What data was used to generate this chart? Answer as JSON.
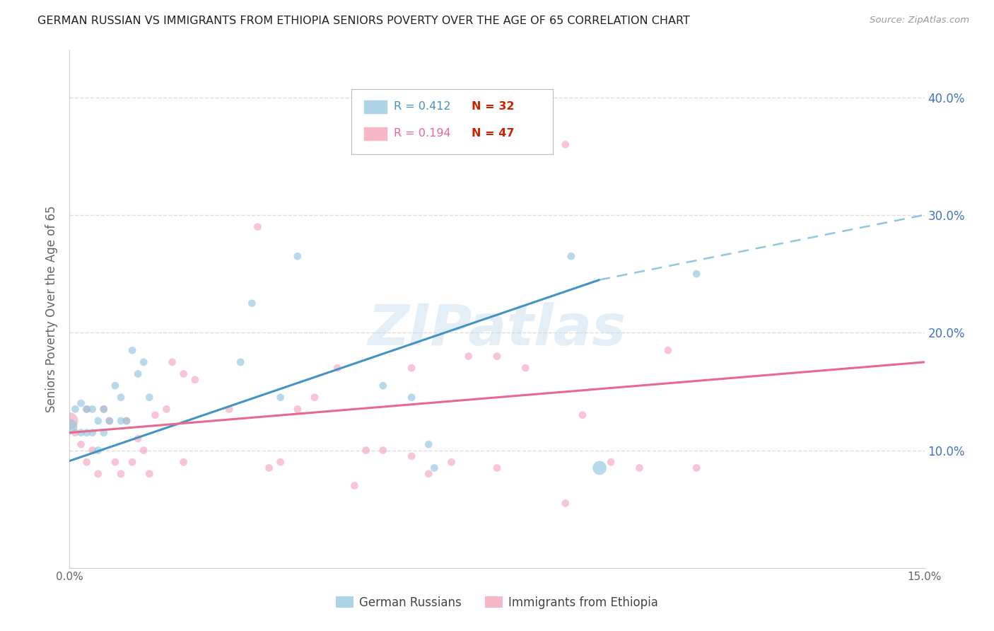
{
  "title": "GERMAN RUSSIAN VS IMMIGRANTS FROM ETHIOPIA SENIORS POVERTY OVER THE AGE OF 65 CORRELATION CHART",
  "source": "Source: ZipAtlas.com",
  "ylabel": "Seniors Poverty Over the Age of 65",
  "xlim": [
    0.0,
    0.15
  ],
  "ylim": [
    0.0,
    0.44
  ],
  "ytick_labels_right": [
    "10.0%",
    "20.0%",
    "30.0%",
    "40.0%"
  ],
  "ytick_values_right": [
    0.1,
    0.2,
    0.3,
    0.4
  ],
  "watermark": "ZIPatlas",
  "blue_color": "#92c5de",
  "pink_color": "#f4a0b5",
  "blue_line_color": "#4393c3",
  "pink_line_color": "#e8698d",
  "blue_dash_color": "#92c5de",
  "scatter_blue": {
    "x": [
      0.0,
      0.001,
      0.002,
      0.002,
      0.003,
      0.003,
      0.004,
      0.004,
      0.005,
      0.005,
      0.006,
      0.006,
      0.007,
      0.008,
      0.009,
      0.009,
      0.01,
      0.011,
      0.012,
      0.013,
      0.014,
      0.03,
      0.032,
      0.037,
      0.04,
      0.055,
      0.06,
      0.063,
      0.064,
      0.088,
      0.093,
      0.11
    ],
    "y": [
      0.12,
      0.135,
      0.14,
      0.115,
      0.135,
      0.115,
      0.135,
      0.115,
      0.125,
      0.1,
      0.115,
      0.135,
      0.125,
      0.155,
      0.145,
      0.125,
      0.125,
      0.185,
      0.165,
      0.175,
      0.145,
      0.175,
      0.225,
      0.145,
      0.265,
      0.155,
      0.145,
      0.105,
      0.085,
      0.265,
      0.085,
      0.25
    ],
    "sizes": [
      250,
      60,
      60,
      60,
      60,
      60,
      60,
      60,
      60,
      60,
      60,
      60,
      60,
      60,
      60,
      60,
      60,
      60,
      60,
      60,
      60,
      60,
      60,
      60,
      60,
      60,
      60,
      60,
      60,
      60,
      200,
      60
    ]
  },
  "scatter_pink": {
    "x": [
      0.0,
      0.001,
      0.002,
      0.003,
      0.003,
      0.004,
      0.005,
      0.006,
      0.007,
      0.008,
      0.009,
      0.01,
      0.011,
      0.012,
      0.013,
      0.014,
      0.015,
      0.017,
      0.018,
      0.02,
      0.022,
      0.028,
      0.033,
      0.037,
      0.04,
      0.043,
      0.047,
      0.052,
      0.055,
      0.06,
      0.063,
      0.067,
      0.07,
      0.075,
      0.08,
      0.087,
      0.09,
      0.095,
      0.1,
      0.105,
      0.11,
      0.087,
      0.075,
      0.06,
      0.05,
      0.035,
      0.02
    ],
    "y": [
      0.125,
      0.115,
      0.105,
      0.135,
      0.09,
      0.1,
      0.08,
      0.135,
      0.125,
      0.09,
      0.08,
      0.125,
      0.09,
      0.11,
      0.1,
      0.08,
      0.13,
      0.135,
      0.175,
      0.165,
      0.16,
      0.135,
      0.29,
      0.09,
      0.135,
      0.145,
      0.17,
      0.1,
      0.1,
      0.17,
      0.08,
      0.09,
      0.18,
      0.18,
      0.17,
      0.055,
      0.13,
      0.09,
      0.085,
      0.185,
      0.085,
      0.36,
      0.085,
      0.095,
      0.07,
      0.085,
      0.09
    ],
    "sizes": [
      300,
      60,
      60,
      60,
      60,
      60,
      60,
      60,
      60,
      60,
      60,
      60,
      60,
      60,
      60,
      60,
      60,
      60,
      60,
      60,
      60,
      60,
      60,
      60,
      60,
      60,
      60,
      60,
      60,
      60,
      60,
      60,
      60,
      60,
      60,
      60,
      60,
      60,
      60,
      60,
      60,
      60,
      60,
      60,
      60,
      60,
      60
    ]
  },
  "blue_trendline": {
    "x": [
      0.0,
      0.093
    ],
    "y": [
      0.091,
      0.245
    ]
  },
  "blue_trendline_dash": {
    "x": [
      0.093,
      0.155
    ],
    "y": [
      0.245,
      0.305
    ]
  },
  "pink_trendline": {
    "x": [
      0.0,
      0.15
    ],
    "y": [
      0.115,
      0.175
    ]
  },
  "background_color": "#ffffff",
  "grid_color": "#dddddd",
  "title_fontsize": 11.5,
  "axis_label_color": "#666666",
  "right_tick_color": "#4472c4",
  "legend_r1": "R = 0.412",
  "legend_n1": "N = 32",
  "legend_r2": "R = 0.194",
  "legend_n2": "N = 47",
  "legend_r_color": "#4393c3",
  "legend_n_color": "#cc2200",
  "legend_r2_color": "#e8698d"
}
